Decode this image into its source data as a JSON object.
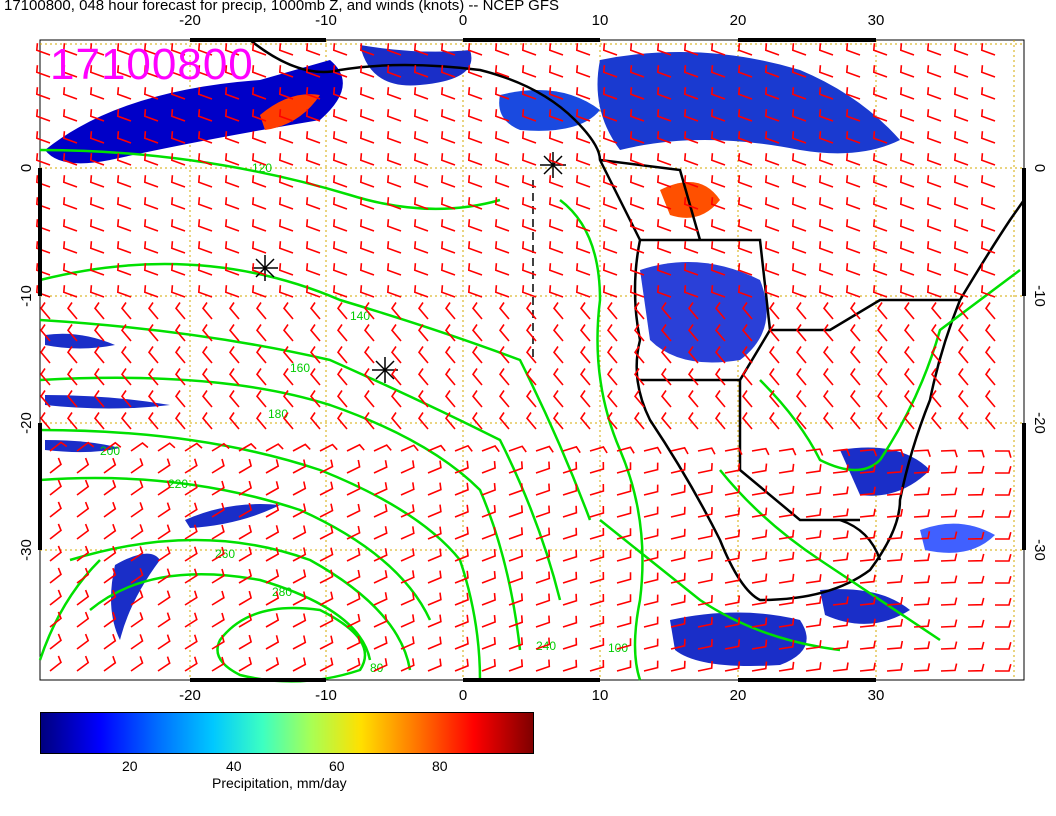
{
  "title": "17100800, 048 hour forecast for precip, 1000mb Z, and winds (knots) -- NCEP GFS",
  "stamp": "17100800",
  "map": {
    "lon_ticks": [
      "-20",
      "-10",
      "0",
      "10",
      "20",
      "30"
    ],
    "lat_ticks": [
      "0",
      "-10",
      "-20",
      "-30"
    ],
    "contour_labels": [
      "120",
      "140",
      "160",
      "180",
      "200",
      "220",
      "240",
      "260",
      "280",
      "100",
      "80"
    ],
    "colors": {
      "coast": "#000000",
      "contours": "#00e000",
      "wind_barbs": "#ff0000",
      "grid": "#d4a800"
    }
  },
  "colorbar": {
    "ticks": [
      "20",
      "40",
      "60",
      "80"
    ],
    "label": "Precipitation, mm/day"
  }
}
